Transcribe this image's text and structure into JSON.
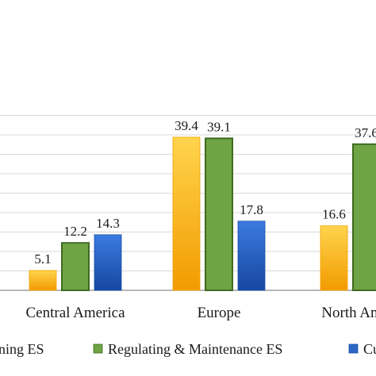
{
  "colors": {
    "provisioning": "#F6B800",
    "provisioning_dark": "#F2A100",
    "regulating": "#6FA444",
    "regulating_stroke": "#3F6A22",
    "cultural": "#2B66C5",
    "cultural_dark": "#1A4EA6",
    "grid": "#D9D9D9",
    "axis": "#8C8C8C"
  },
  "chart_data": {
    "type": "bar",
    "categories": [
      "Central America",
      "Europe",
      "North America"
    ],
    "series": [
      {
        "name": "Provisioning ES",
        "values": [
          5.1,
          39.4,
          16.6
        ],
        "labels": [
          "5.1",
          "39.4",
          "16.6"
        ]
      },
      {
        "name": "Regulating & Maintenance ES",
        "values": [
          12.2,
          39.1,
          37.6
        ],
        "labels": [
          "12.2",
          "39.1",
          "37.6"
        ]
      },
      {
        "name": "Cultural ES",
        "values": [
          14.3,
          17.8,
          null
        ],
        "labels": [
          "14.3",
          "17.8",
          ""
        ]
      }
    ],
    "legend_labels": [
      "oning ES",
      "Regulating & Maintenance ES",
      "Cu"
    ],
    "ylim": [
      0,
      45
    ],
    "ytick_step": 5,
    "grid": true,
    "legend_position": "bottom",
    "xlabel": "",
    "ylabel": ""
  }
}
